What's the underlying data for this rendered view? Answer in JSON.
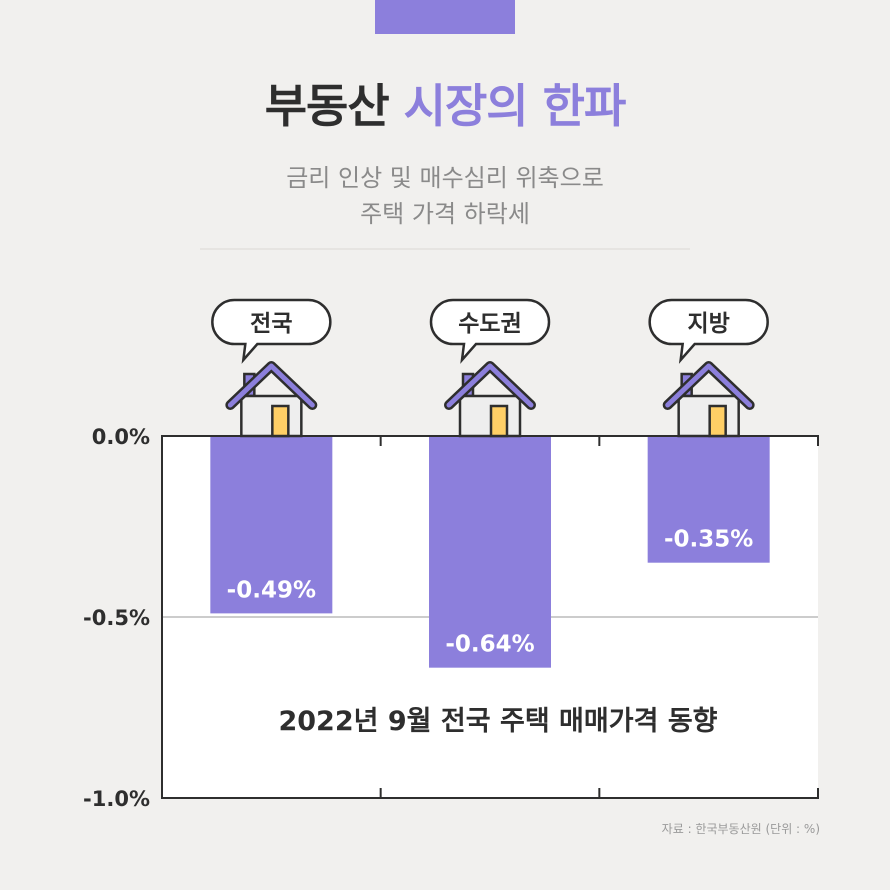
{
  "header": {
    "title_part1": "부동산",
    "title_part2": "시장의 한파",
    "subtitle_line1": "금리 인상 및 매수심리 위축으로",
    "subtitle_line2": "주택 가격 하락세"
  },
  "colors": {
    "accent": "#8c7fdc",
    "text_dark": "#2e2e2e",
    "text_gray": "#8a8a8a",
    "house_wall": "#eeeeee",
    "house_door": "#ffcf66"
  },
  "chart_data": {
    "type": "bar",
    "title": "2022년 9월 전국 주택 매매가격 동향",
    "categories": [
      "전국",
      "수도권",
      "지방"
    ],
    "values": [
      -0.49,
      -0.64,
      -0.35
    ],
    "value_labels": [
      "-0.49%",
      "-0.64%",
      "-0.35%"
    ],
    "yticks": [
      0.0,
      -0.5,
      -1.0
    ],
    "ytick_labels": [
      "0.0%",
      "-0.5%",
      "-1.0%"
    ],
    "ylim": [
      -1.0,
      0.0
    ],
    "xlabel": "",
    "ylabel": "",
    "grid": true
  },
  "footnote": "자료 : 한국부동산원 (단위 : %)"
}
